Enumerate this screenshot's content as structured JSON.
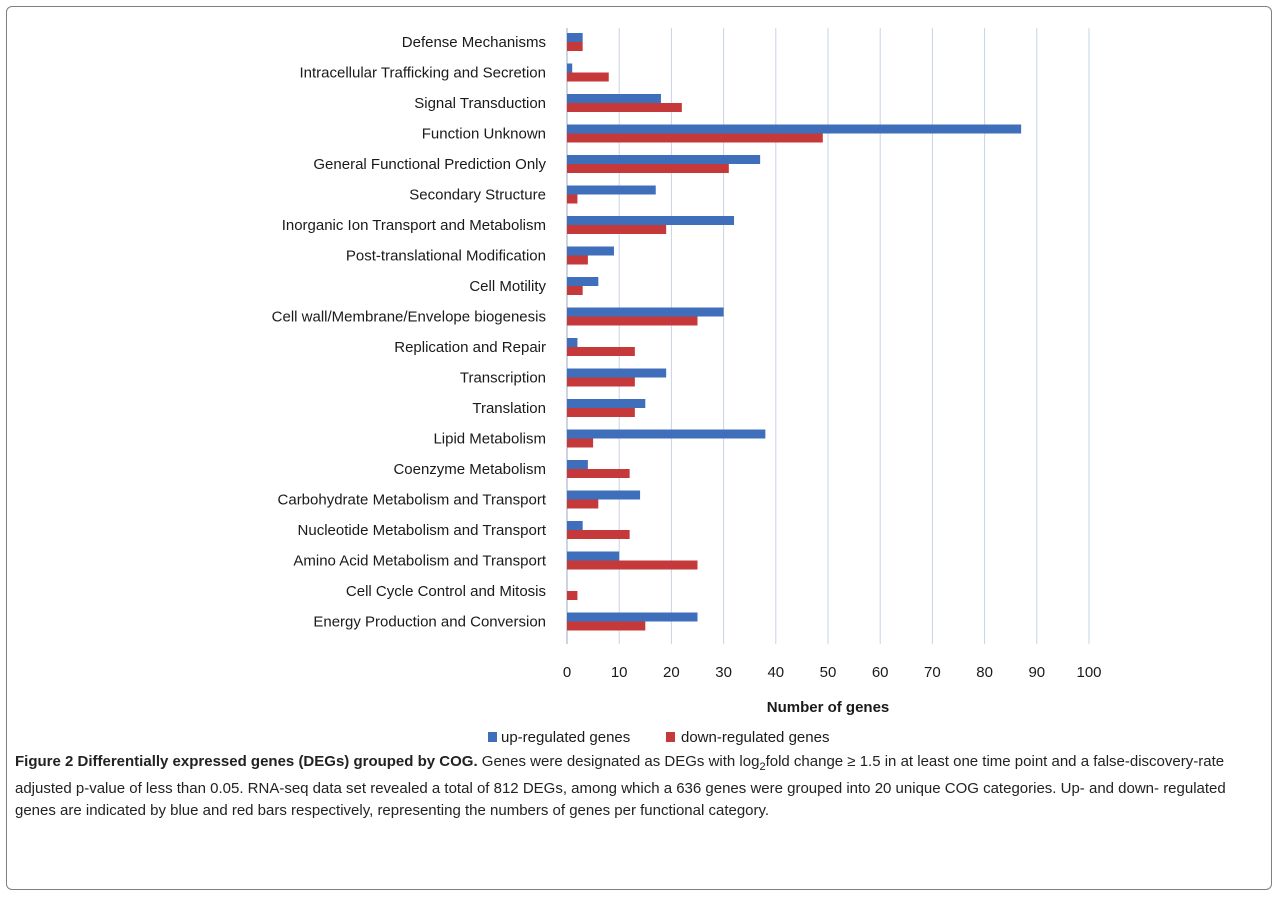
{
  "chart_data": {
    "type": "bar",
    "orientation": "horizontal",
    "categories": [
      "Defense Mechanisms",
      "Intracellular Trafficking and Secretion",
      "Signal Transduction",
      "Function Unknown",
      "General Functional Prediction Only",
      "Secondary Structure",
      "Inorganic Ion Transport and Metabolism",
      "Post-translational Modification",
      "Cell Motility",
      "Cell wall/Membrane/Envelope biogenesis",
      "Replication and Repair",
      "Transcription",
      "Translation",
      "Lipid Metabolism",
      "Coenzyme Metabolism",
      "Carbohydrate Metabolism and Transport",
      "Nucleotide Metabolism and Transport",
      "Amino Acid Metabolism and Transport",
      "Cell Cycle Control and Mitosis",
      "Energy Production and Conversion"
    ],
    "series": [
      {
        "name": "up-regulated genes",
        "color": "#3f6fbb",
        "values": [
          3,
          1,
          18,
          87,
          37,
          17,
          32,
          9,
          6,
          30,
          2,
          19,
          15,
          38,
          4,
          14,
          3,
          10,
          0,
          25
        ]
      },
      {
        "name": "down-regulated genes",
        "color": "#c6393b",
        "values": [
          3,
          8,
          22,
          49,
          31,
          2,
          19,
          4,
          3,
          25,
          13,
          13,
          13,
          5,
          12,
          6,
          12,
          25,
          2,
          15
        ]
      }
    ],
    "xlabel": "Number of genes",
    "xlim": [
      0,
      100
    ],
    "xticks": [
      0,
      10,
      20,
      30,
      40,
      50,
      60,
      70,
      80,
      90,
      100
    ],
    "grid": true,
    "legend_position": "bottom"
  },
  "caption": {
    "title": "Figure 2 Differentially expressed genes (DEGs) grouped by COG.",
    "text_part1": " Genes were designated as DEGs with log",
    "subscript": "2",
    "text_part2": "fold change ≥ 1.5 in at least one time point and a false-discovery-rate adjusted p-value of less than 0.05. RNA-seq data set revealed a total of 812 DEGs, among which a 636 genes were grouped into 20 unique COG categories. Up- and down- regulated genes are indicated by blue and red bars respectively, representing the numbers of genes per functional category."
  }
}
